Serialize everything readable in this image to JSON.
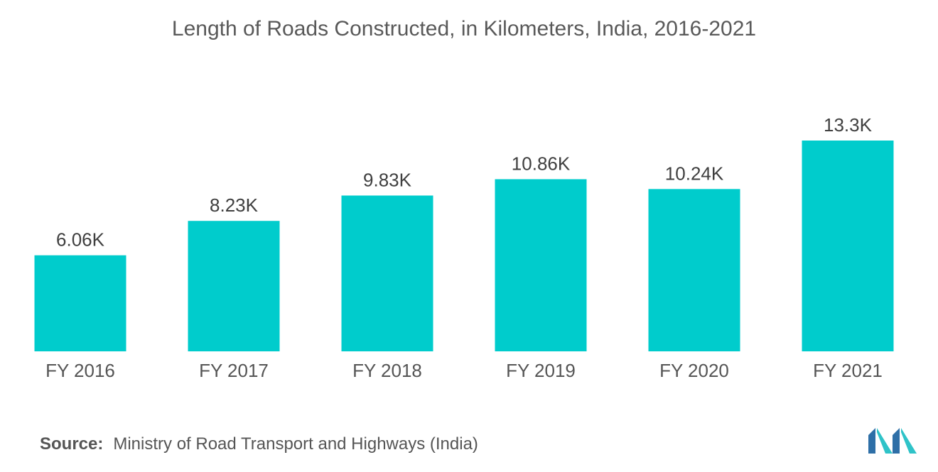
{
  "chart_data": {
    "type": "bar",
    "title": "Length of Roads Constructed, in Kilometers, India, 2016-2021",
    "categories": [
      "FY 2016",
      "FY 2017",
      "FY 2018",
      "FY 2019",
      "FY 2020",
      "FY 2021"
    ],
    "values": [
      6060,
      8230,
      9830,
      10860,
      10240,
      13300
    ],
    "data_labels": [
      "6.06K",
      "8.23K",
      "9.83K",
      "10.86K",
      "10.24K",
      "13.3K"
    ],
    "xlabel": "",
    "ylabel": "",
    "ylim": [
      0,
      13300
    ],
    "grid": false,
    "legend": "none",
    "bar_color": "#00CCCC"
  },
  "source": {
    "label": "Source:",
    "text": "Ministry of Road Transport and Highways (India)"
  },
  "logo": {
    "icon": "mordor-intelligence-logo-icon",
    "colors": [
      "#2E6FA7",
      "#2FC3C8"
    ]
  }
}
